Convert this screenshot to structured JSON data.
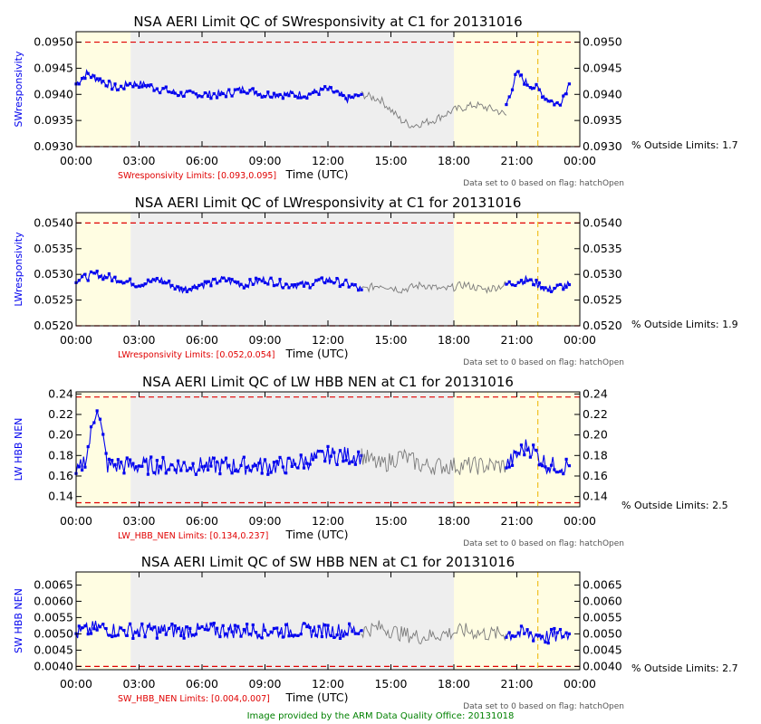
{
  "footer": "Image provided by the ARM Data Quality Office: 20131018",
  "colors": {
    "data": "#0000ee",
    "line": "#7a7a7a",
    "limit": "#e00000",
    "marker": "#f0c020",
    "shade_gray": "#eeeeee",
    "shade_yellow": "#fffde2"
  },
  "chart_data": [
    {
      "type": "line",
      "title": "NSA AERI Limit QC of SWresponsivity at C1 for 20131016",
      "ylabel": "SWresponsivity",
      "xlabel": "Time (UTC)",
      "xlim": [
        0,
        24
      ],
      "ylim": [
        0.093,
        0.0952
      ],
      "x_ticks": [
        "00:00",
        "03:00",
        "06:00",
        "09:00",
        "12:00",
        "15:00",
        "18:00",
        "21:00",
        "00:00"
      ],
      "y_ticks": [
        "0.0930",
        "0.0935",
        "0.0940",
        "0.0945",
        "0.0950"
      ],
      "limits_label": "SWresponsivity Limits: [0.093,0.095]",
      "limits": [
        0.093,
        0.095
      ],
      "pct_outside": "% Outside Limits: 1.7",
      "flag_note": "Data set to 0 based on flag: hatchOpen",
      "series": [
        {
          "values": [
            [
              0.0,
              0.0942
            ],
            [
              0.5,
              0.0944
            ],
            [
              1.0,
              0.0943
            ],
            [
              1.5,
              0.0942
            ],
            [
              2.0,
              0.0941
            ],
            [
              2.5,
              0.0942
            ],
            [
              3.0,
              0.0942
            ],
            [
              4.0,
              0.0941
            ],
            [
              5.0,
              0.094
            ],
            [
              6.0,
              0.094
            ],
            [
              7.0,
              0.094
            ],
            [
              8.0,
              0.0941
            ],
            [
              9.0,
              0.094
            ],
            [
              10.0,
              0.094
            ],
            [
              11.0,
              0.094
            ],
            [
              12.0,
              0.0941
            ],
            [
              13.0,
              0.0939
            ],
            [
              13.6,
              0.094
            ]
          ]
        },
        {
          "gray": true,
          "values": [
            [
              13.6,
              0.094
            ],
            [
              14.5,
              0.0939
            ],
            [
              15.0,
              0.0937
            ],
            [
              15.5,
              0.0935
            ],
            [
              16.0,
              0.0934
            ],
            [
              17.0,
              0.0935
            ],
            [
              18.0,
              0.0937
            ],
            [
              19.0,
              0.0938
            ],
            [
              20.0,
              0.0937
            ],
            [
              20.5,
              0.0936
            ]
          ]
        },
        {
          "values": [
            [
              20.5,
              0.0938
            ],
            [
              21.0,
              0.0944
            ],
            [
              21.5,
              0.0942
            ],
            [
              22.0,
              0.0941
            ],
            [
              22.5,
              0.0939
            ],
            [
              23.0,
              0.0938
            ],
            [
              23.5,
              0.0942
            ]
          ]
        }
      ]
    },
    {
      "type": "line",
      "title": "NSA AERI Limit QC of LWresponsivity at C1 for 20131016",
      "ylabel": "LWresponsivity",
      "xlabel": "Time (UTC)",
      "xlim": [
        0,
        24
      ],
      "ylim": [
        0.052,
        0.0542
      ],
      "x_ticks": [
        "00:00",
        "03:00",
        "06:00",
        "09:00",
        "12:00",
        "15:00",
        "18:00",
        "21:00",
        "00:00"
      ],
      "y_ticks": [
        "0.0520",
        "0.0525",
        "0.0530",
        "0.0535",
        "0.0540"
      ],
      "limits_label": "LWresponsivity Limits: [0.052,0.054]",
      "limits": [
        0.052,
        0.054
      ],
      "pct_outside": "% Outside Limits: 1.9",
      "flag_note": "Data set to 0 based on flag: hatchOpen",
      "series": [
        {
          "values": [
            [
              0.0,
              0.0529
            ],
            [
              1.0,
              0.053
            ],
            [
              2.0,
              0.0529
            ],
            [
              3.0,
              0.0528
            ],
            [
              4.0,
              0.0529
            ],
            [
              5.0,
              0.0527
            ],
            [
              6.0,
              0.0528
            ],
            [
              7.0,
              0.0529
            ],
            [
              8.0,
              0.0528
            ],
            [
              9.0,
              0.0529
            ],
            [
              10.0,
              0.0528
            ],
            [
              11.0,
              0.0528
            ],
            [
              12.0,
              0.0529
            ],
            [
              13.0,
              0.0528
            ],
            [
              13.6,
              0.0527
            ]
          ]
        },
        {
          "gray": true,
          "values": [
            [
              13.6,
              0.0527
            ],
            [
              14.5,
              0.0528
            ],
            [
              15.5,
              0.0527
            ],
            [
              16.5,
              0.0528
            ],
            [
              17.5,
              0.0527
            ],
            [
              18.5,
              0.0528
            ],
            [
              19.5,
              0.0527
            ],
            [
              20.5,
              0.0528
            ]
          ]
        },
        {
          "values": [
            [
              20.5,
              0.0528
            ],
            [
              21.5,
              0.0529
            ],
            [
              22.5,
              0.0527
            ],
            [
              23.5,
              0.0528
            ]
          ]
        }
      ]
    },
    {
      "type": "line",
      "title": "NSA AERI Limit QC of LW HBB NEN at C1 for 20131016",
      "ylabel": "LW HBB NEN",
      "xlabel": "Time (UTC)",
      "xlim": [
        0,
        24
      ],
      "ylim": [
        0.13,
        0.242
      ],
      "x_ticks": [
        "00:00",
        "03:00",
        "06:00",
        "09:00",
        "12:00",
        "15:00",
        "18:00",
        "21:00",
        "00:00"
      ],
      "y_ticks": [
        "0.14",
        "0.16",
        "0.18",
        "0.20",
        "0.22",
        "0.24"
      ],
      "limits_label": "LW_HBB_NEN Limits: [0.134,0.237]",
      "limits": [
        0.134,
        0.237
      ],
      "pct_outside": "% Outside Limits: 2.5",
      "flag_note": "Data set to 0 based on flag: hatchOpen",
      "series": [
        {
          "values": [
            [
              0.0,
              0.16
            ],
            [
              0.5,
              0.18
            ],
            [
              1.0,
              0.23
            ],
            [
              1.5,
              0.17
            ],
            [
              2.5,
              0.17
            ],
            [
              4.0,
              0.17
            ],
            [
              6.0,
              0.17
            ],
            [
              8.0,
              0.17
            ],
            [
              10.0,
              0.17
            ],
            [
              12.0,
              0.18
            ],
            [
              13.6,
              0.18
            ]
          ]
        },
        {
          "gray": true,
          "values": [
            [
              13.6,
              0.18
            ],
            [
              14.5,
              0.17
            ],
            [
              15.5,
              0.18
            ],
            [
              16.5,
              0.17
            ],
            [
              17.5,
              0.17
            ],
            [
              18.5,
              0.17
            ],
            [
              19.5,
              0.17
            ],
            [
              20.5,
              0.17
            ]
          ]
        },
        {
          "values": [
            [
              20.5,
              0.17
            ],
            [
              21.5,
              0.19
            ],
            [
              22.5,
              0.17
            ],
            [
              23.5,
              0.17
            ]
          ]
        }
      ]
    },
    {
      "type": "line",
      "title": "NSA AERI Limit QC of SW HBB NEN at C1 for 20131016",
      "ylabel": "SW HBB NEN",
      "xlabel": "Time (UTC)",
      "xlim": [
        0,
        24
      ],
      "ylim": [
        0.0039,
        0.0069
      ],
      "x_ticks": [
        "00:00",
        "03:00",
        "06:00",
        "09:00",
        "12:00",
        "15:00",
        "18:00",
        "21:00",
        "00:00"
      ],
      "y_ticks": [
        "0.0040",
        "0.0045",
        "0.0050",
        "0.0055",
        "0.0060",
        "0.0065"
      ],
      "limits_label": "SW_HBB_NEN Limits: [0.004,0.007]",
      "limits": [
        0.004,
        0.007
      ],
      "pct_outside": "% Outside Limits: 2.7",
      "flag_note": "Data set to 0 based on flag: hatchOpen",
      "series": [
        {
          "values": [
            [
              0.0,
              0.005
            ],
            [
              1.0,
              0.0052
            ],
            [
              2.0,
              0.0051
            ],
            [
              4.0,
              0.0051
            ],
            [
              6.0,
              0.0051
            ],
            [
              8.0,
              0.0051
            ],
            [
              10.0,
              0.0051
            ],
            [
              12.0,
              0.0051
            ],
            [
              13.6,
              0.0051
            ]
          ]
        },
        {
          "gray": true,
          "values": [
            [
              13.6,
              0.0051
            ],
            [
              14.5,
              0.0052
            ],
            [
              15.5,
              0.005
            ],
            [
              16.5,
              0.0049
            ],
            [
              17.5,
              0.005
            ],
            [
              18.5,
              0.0051
            ],
            [
              19.5,
              0.005
            ],
            [
              20.5,
              0.005
            ]
          ]
        },
        {
          "values": [
            [
              20.5,
              0.005
            ],
            [
              21.5,
              0.005
            ],
            [
              22.5,
              0.0049
            ],
            [
              23.5,
              0.005
            ]
          ]
        }
      ]
    }
  ]
}
